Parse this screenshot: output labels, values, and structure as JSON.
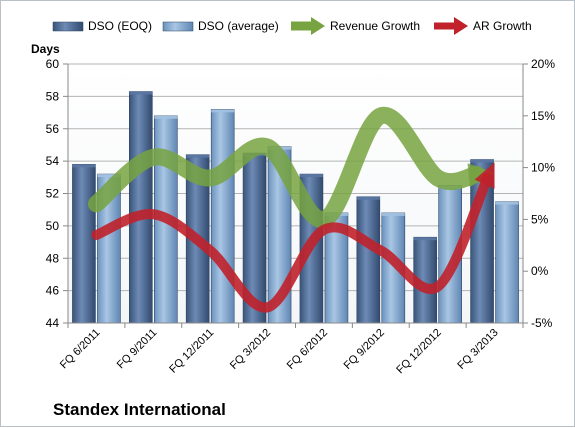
{
  "chart_data": {
    "type": "bar",
    "company_label": "Standex International",
    "y_axis_title": "Days",
    "categories": [
      "FQ 6/2011",
      "FQ 9/2011",
      "FQ 12/2011",
      "FQ 3/2012",
      "FQ 6/2012",
      "FQ 9/2012",
      "FQ 12/2012",
      "FQ 3/2013"
    ],
    "left_axis": {
      "min": 44,
      "max": 60,
      "step": 2,
      "ticks": [
        "44",
        "46",
        "48",
        "50",
        "52",
        "54",
        "56",
        "58",
        "60"
      ]
    },
    "right_axis": {
      "min": -5,
      "max": 20,
      "step": 5,
      "ticks": [
        "-5%",
        "0%",
        "5%",
        "10%",
        "15%",
        "20%"
      ]
    },
    "bar_series": [
      {
        "name": "DSO (EOQ)",
        "color": "#4a6690",
        "values": [
          53.8,
          58.3,
          54.4,
          54.5,
          53.2,
          51.8,
          49.3,
          54.1
        ]
      },
      {
        "name": "DSO (average)",
        "color": "#7fa4cc",
        "values": [
          53.2,
          56.8,
          57.2,
          54.9,
          50.8,
          50.8,
          52.5,
          51.5
        ]
      }
    ],
    "line_series": [
      {
        "name": "Revenue Growth",
        "color": "#77a341",
        "axis": "right",
        "values": [
          6.5,
          11,
          9,
          12,
          5,
          15,
          9,
          9.5
        ]
      },
      {
        "name": "AR Growth",
        "color": "#c0212b",
        "axis": "right",
        "values": [
          3.5,
          5.5,
          2,
          -3.5,
          4,
          2,
          -1.5,
          10.5
        ]
      }
    ],
    "grid": true,
    "legend_position": "top"
  }
}
